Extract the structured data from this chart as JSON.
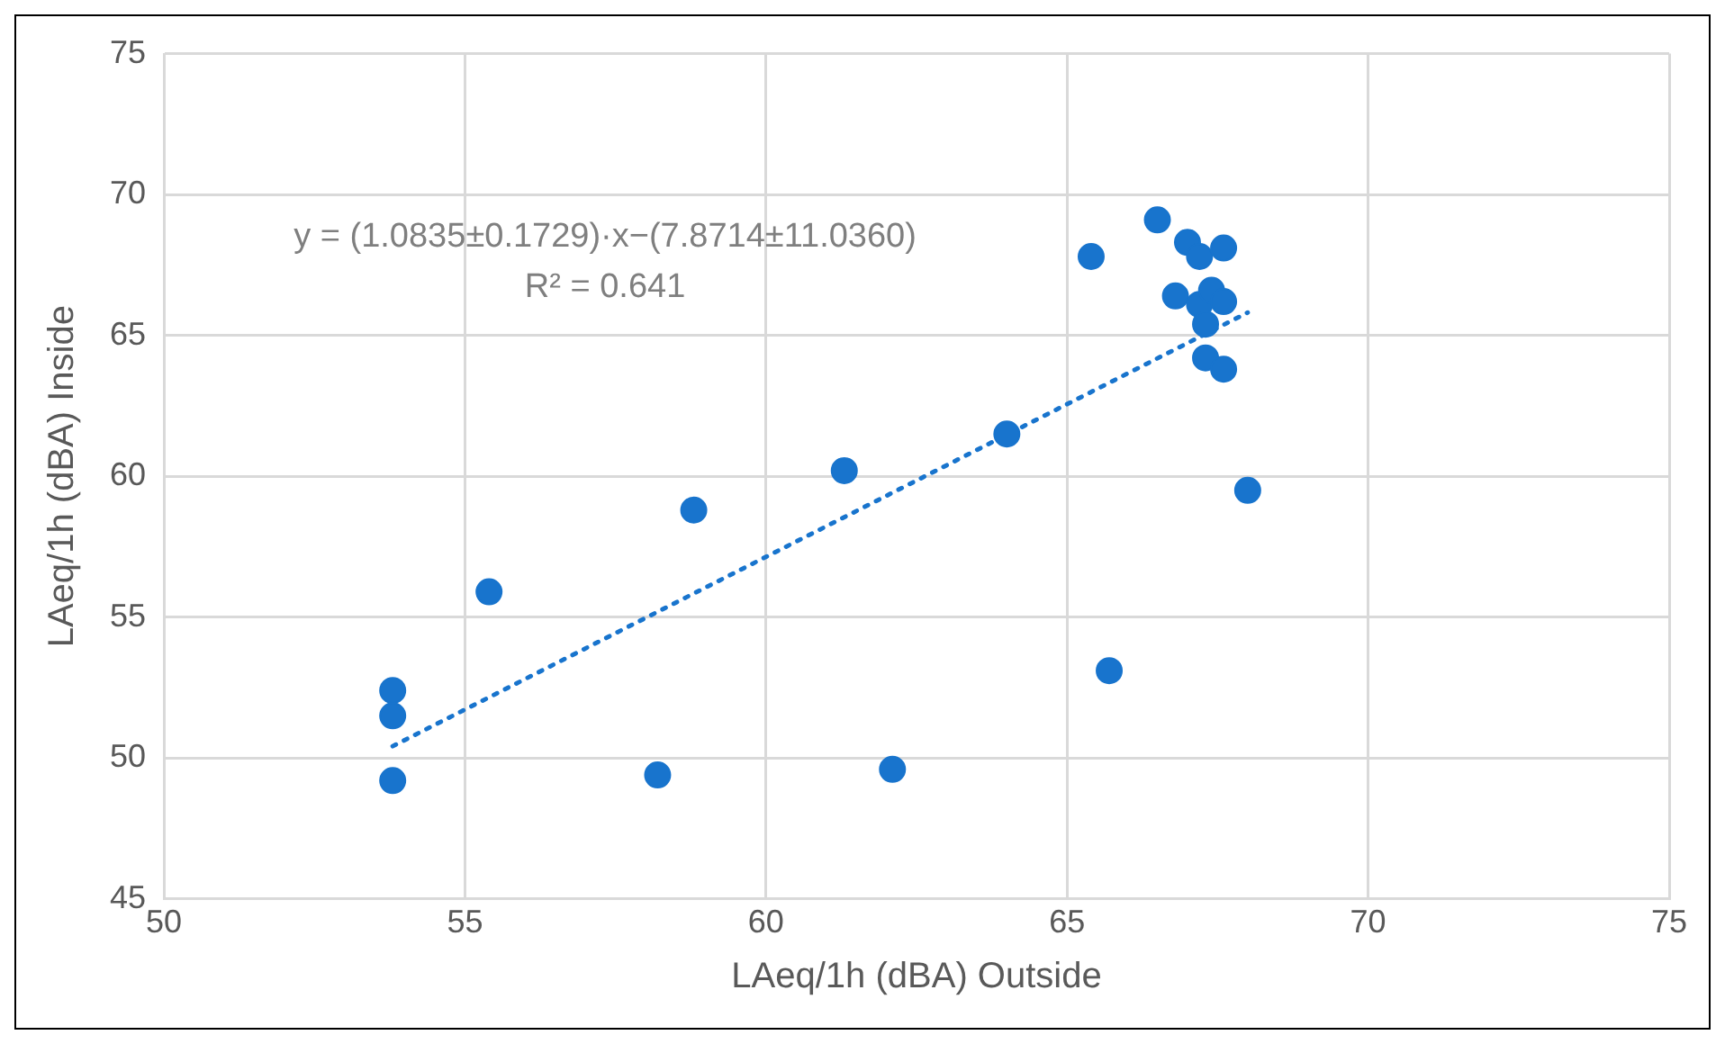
{
  "chart_data": {
    "type": "scatter",
    "xlabel": "LAeq/1h (dBA) Outside",
    "ylabel": "LAeq/1h (dBA) Inside",
    "xlim": [
      50,
      75
    ],
    "xticks": [
      50,
      55,
      60,
      65,
      70,
      75
    ],
    "ylim": [
      45,
      75
    ],
    "yticks": [
      45,
      50,
      55,
      60,
      65,
      70,
      75
    ],
    "grid": true,
    "legend": false,
    "marker": "circle",
    "annotations": [
      "y = (1.0835±0.1729)·x−(7.8714±11.0360)",
      "R² = 0.641"
    ],
    "series": [
      {
        "type": "scatter",
        "color": "#1874cd",
        "x": [
          53.8,
          53.8,
          53.8,
          55.4,
          58.8,
          58.2,
          61.3,
          62.1,
          64.0,
          65.7,
          65.4,
          66.5,
          67.0,
          67.2,
          67.6,
          66.8,
          67.2,
          67.3,
          67.4,
          67.6,
          67.3,
          67.6,
          68.0
        ],
        "values": [
          52.4,
          51.5,
          49.2,
          55.9,
          58.8,
          49.4,
          60.2,
          49.6,
          61.5,
          53.1,
          67.8,
          69.1,
          68.3,
          67.8,
          68.1,
          66.4,
          66.1,
          65.4,
          66.6,
          66.2,
          64.2,
          63.8,
          59.5
        ]
      },
      {
        "type": "line",
        "color": "#1874cd",
        "line_style": "dotted",
        "marker": "none",
        "x": [
          53.8,
          68.0
        ],
        "values": [
          50.42,
          65.81
        ]
      }
    ]
  }
}
